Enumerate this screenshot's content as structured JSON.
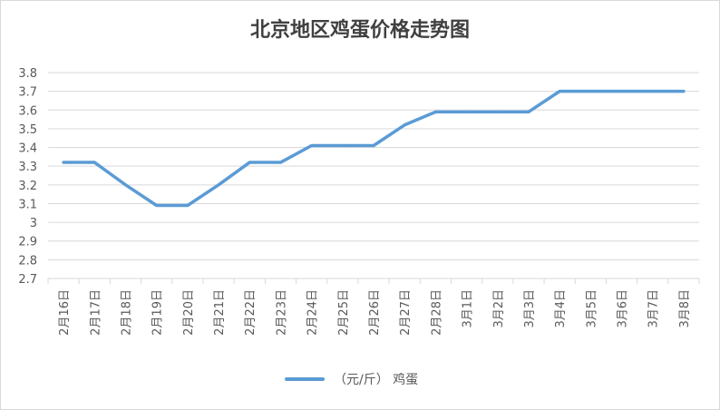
{
  "chart_data": {
    "type": "line",
    "title": "北京地区鸡蛋价格走势图",
    "categories": [
      "2月16日",
      "2月17日",
      "2月18日",
      "2月19日",
      "2月20日",
      "2月21日",
      "2月22日",
      "2月23日",
      "2月24日",
      "2月25日",
      "2月26日",
      "2月27日",
      "2月28日",
      "3月1日",
      "3月2日",
      "3月3日",
      "3月4日",
      "3月5日",
      "3月6日",
      "3月7日",
      "3月8日"
    ],
    "series": [
      {
        "name": "（元/斤） 鸡蛋",
        "color": "#5b9bd5",
        "values": [
          3.32,
          3.32,
          3.2,
          3.09,
          3.09,
          3.2,
          3.32,
          3.32,
          3.41,
          3.41,
          3.41,
          3.52,
          3.59,
          3.59,
          3.59,
          3.59,
          3.7,
          3.7,
          3.7,
          3.7,
          3.7
        ]
      }
    ],
    "ylim": [
      2.7,
      3.8
    ],
    "yticks": [
      "3.8",
      "3.7",
      "3.6",
      "3.5",
      "3.4",
      "3.3",
      "3.2",
      "3.1",
      "3",
      "2.9",
      "2.8",
      "2.7"
    ],
    "grid": true,
    "legend_position": "bottom"
  }
}
